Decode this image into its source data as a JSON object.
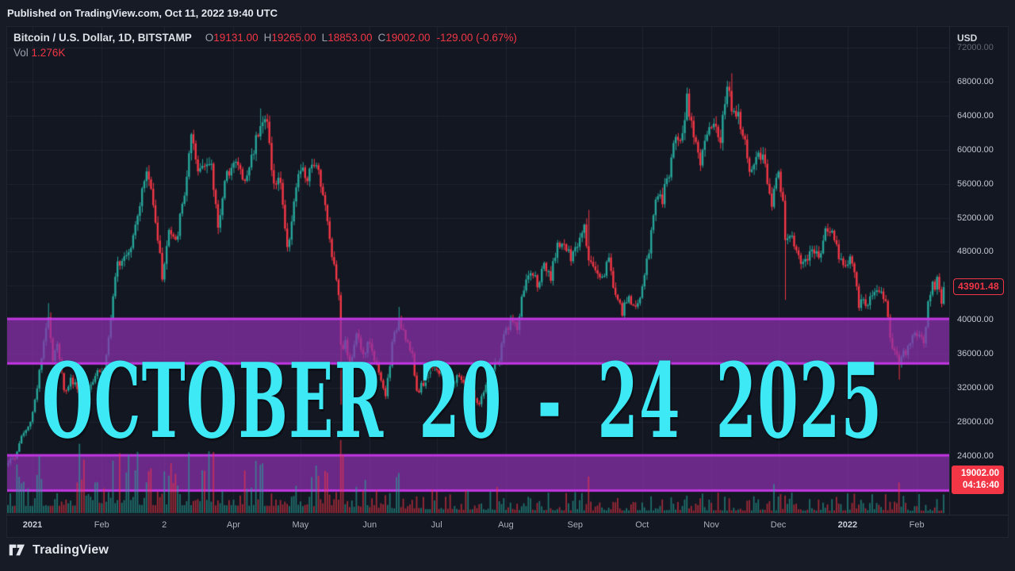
{
  "topbar": {
    "published_text": "Published on TradingView.com, Oct 11, 2022 19:40 UTC"
  },
  "legend": {
    "symbol_title": "Bitcoin / U.S. Dollar, 1D, BITSTAMP",
    "ohlc": [
      {
        "label": "O",
        "value": "19131.00"
      },
      {
        "label": "H",
        "value": "19265.00"
      },
      {
        "label": "L",
        "value": "18853.00"
      },
      {
        "label": "C",
        "value": "19002.00"
      }
    ],
    "change_text": "-129.00 (-0.67%)",
    "vol_label": "Vol",
    "vol_value": "1.276K"
  },
  "price_scale": {
    "unit": "USD",
    "ticks": [
      {
        "label": "72000.00",
        "price": 72000,
        "faded": true
      },
      {
        "label": "68000.00",
        "price": 68000
      },
      {
        "label": "64000.00",
        "price": 64000
      },
      {
        "label": "60000.00",
        "price": 60000
      },
      {
        "label": "56000.00",
        "price": 56000
      },
      {
        "label": "52000.00",
        "price": 52000
      },
      {
        "label": "48000.00",
        "price": 48000
      },
      {
        "label": "40000.00",
        "price": 40000
      },
      {
        "label": "36000.00",
        "price": 36000
      },
      {
        "label": "32000.00",
        "price": 32000
      },
      {
        "label": "28000.00",
        "price": 28000
      },
      {
        "label": "24000.00",
        "price": 24000
      }
    ],
    "last_visible_price": {
      "label": "43901.48",
      "price": 43901.48
    },
    "current_price": {
      "price_label": "19002.00",
      "countdown": "04:16:40",
      "price": 19002
    }
  },
  "time_scale": {
    "ticks": [
      {
        "label": "2021",
        "d": 12,
        "year": true
      },
      {
        "label": "Feb",
        "d": 43
      },
      {
        "label": "2",
        "d": 71
      },
      {
        "label": "Apr",
        "d": 102
      },
      {
        "label": "May",
        "d": 132
      },
      {
        "label": "Jun",
        "d": 163
      },
      {
        "label": "Jul",
        "d": 193
      },
      {
        "label": "Aug",
        "d": 224
      },
      {
        "label": "Sep",
        "d": 255
      },
      {
        "label": "Oct",
        "d": 285
      },
      {
        "label": "Nov",
        "d": 316
      },
      {
        "label": "Dec",
        "d": 346
      },
      {
        "label": "2022",
        "d": 377,
        "year": true
      },
      {
        "label": "Feb",
        "d": 408
      }
    ]
  },
  "overlay": {
    "banner_text": "OCTOBER 20 - 24 2025",
    "banner_color": "#3ce9f4"
  },
  "footer": {
    "brand": "TradingView"
  },
  "chart_data": {
    "type": "candlestick",
    "symbol": "Bitcoin / U.S. Dollar",
    "interval": "1D",
    "exchange": "BITSTAMP",
    "ylim": [
      17062,
      74437
    ],
    "grid_price_step": 4000,
    "grid_price_min": 20000,
    "grid_price_max": 72000,
    "days_total": 421,
    "zones": [
      {
        "top_price": 40100,
        "bottom_price": 34850
      },
      {
        "top_price": 24050,
        "bottom_price": 19900
      }
    ],
    "colors": {
      "up": "#26a69a",
      "down": "#f23645",
      "band_fill": "rgba(141,49,175,0.72)",
      "band_border": "#c136e0",
      "grid": "rgba(140,150,170,0.10)",
      "vol_up": "rgba(38,166,154,0.62)",
      "vol_down": "rgba(242,54,69,0.62)"
    },
    "close_anchors": [
      [
        0,
        23200
      ],
      [
        4,
        23700
      ],
      [
        7,
        26300
      ],
      [
        10,
        27300
      ],
      [
        12,
        29200
      ],
      [
        14,
        32200
      ],
      [
        17,
        37000
      ],
      [
        19,
        40800
      ],
      [
        21,
        35500
      ],
      [
        23,
        37400
      ],
      [
        26,
        31500
      ],
      [
        29,
        33000
      ],
      [
        32,
        32100
      ],
      [
        35,
        30400
      ],
      [
        38,
        32600
      ],
      [
        41,
        34300
      ],
      [
        44,
        33600
      ],
      [
        46,
        38000
      ],
      [
        50,
        46600
      ],
      [
        53,
        47800
      ],
      [
        56,
        48800
      ],
      [
        58,
        51600
      ],
      [
        63,
        57400
      ],
      [
        66,
        54200
      ],
      [
        70,
        45100
      ],
      [
        73,
        50400
      ],
      [
        76,
        48900
      ],
      [
        80,
        54900
      ],
      [
        83,
        61200
      ],
      [
        86,
        57300
      ],
      [
        89,
        58900
      ],
      [
        92,
        57650
      ],
      [
        95,
        51300
      ],
      [
        98,
        55800
      ],
      [
        101,
        58700
      ],
      [
        104,
        58100
      ],
      [
        107,
        56000
      ],
      [
        110,
        59100
      ],
      [
        114,
        63500
      ],
      [
        117,
        63100
      ],
      [
        120,
        55700
      ],
      [
        123,
        56500
      ],
      [
        126,
        48000
      ],
      [
        129,
        54000
      ],
      [
        132,
        57700
      ],
      [
        135,
        56500
      ],
      [
        139,
        58900
      ],
      [
        142,
        55000
      ],
      [
        145,
        49500
      ],
      [
        147,
        46400
      ],
      [
        149,
        43500
      ],
      [
        150,
        36700
      ],
      [
        152,
        37300
      ],
      [
        154,
        34700
      ],
      [
        157,
        38700
      ],
      [
        160,
        35600
      ],
      [
        162,
        37000
      ],
      [
        164,
        36600
      ],
      [
        167,
        33500
      ],
      [
        170,
        31000
      ],
      [
        173,
        37000
      ],
      [
        176,
        40200
      ],
      [
        179,
        38100
      ],
      [
        182,
        35500
      ],
      [
        184,
        31600
      ],
      [
        187,
        32500
      ],
      [
        190,
        34400
      ],
      [
        192,
        35000
      ],
      [
        194,
        33800
      ],
      [
        197,
        33900
      ],
      [
        200,
        32100
      ],
      [
        203,
        33600
      ],
      [
        206,
        31800
      ],
      [
        209,
        31400
      ],
      [
        212,
        29800
      ],
      [
        215,
        32100
      ],
      [
        218,
        34300
      ],
      [
        221,
        35300
      ],
      [
        223,
        38200
      ],
      [
        226,
        39900
      ],
      [
        229,
        38900
      ],
      [
        232,
        43800
      ],
      [
        235,
        45600
      ],
      [
        238,
        44400
      ],
      [
        241,
        46000
      ],
      [
        244,
        44700
      ],
      [
        247,
        49300
      ],
      [
        250,
        48800
      ],
      [
        253,
        47000
      ],
      [
        256,
        48900
      ],
      [
        259,
        51800
      ],
      [
        261,
        46900
      ],
      [
        264,
        46100
      ],
      [
        267,
        44900
      ],
      [
        270,
        47100
      ],
      [
        273,
        43000
      ],
      [
        276,
        40700
      ],
      [
        279,
        42800
      ],
      [
        282,
        41100
      ],
      [
        285,
        43800
      ],
      [
        288,
        48200
      ],
      [
        291,
        54700
      ],
      [
        294,
        54000
      ],
      [
        297,
        57400
      ],
      [
        300,
        61700
      ],
      [
        303,
        62000
      ],
      [
        305,
        66000
      ],
      [
        308,
        62300
      ],
      [
        311,
        58400
      ],
      [
        314,
        61300
      ],
      [
        317,
        63300
      ],
      [
        320,
        61400
      ],
      [
        323,
        67600
      ],
      [
        325,
        64900
      ],
      [
        328,
        64800
      ],
      [
        331,
        60300
      ],
      [
        334,
        56900
      ],
      [
        337,
        59800
      ],
      [
        340,
        58100
      ],
      [
        343,
        54000
      ],
      [
        346,
        57300
      ],
      [
        348,
        53600
      ],
      [
        349,
        49400
      ],
      [
        352,
        50100
      ],
      [
        355,
        47100
      ],
      [
        358,
        47000
      ],
      [
        361,
        48900
      ],
      [
        364,
        46700
      ],
      [
        367,
        50800
      ],
      [
        370,
        50700
      ],
      [
        373,
        47500
      ],
      [
        376,
        46200
      ],
      [
        379,
        47300
      ],
      [
        382,
        41900
      ],
      [
        385,
        41800
      ],
      [
        388,
        43100
      ],
      [
        391,
        43100
      ],
      [
        394,
        42400
      ],
      [
        397,
        36400
      ],
      [
        400,
        35100
      ],
      [
        403,
        36300
      ],
      [
        406,
        37900
      ],
      [
        409,
        38500
      ],
      [
        411,
        36900
      ],
      [
        413,
        41600
      ],
      [
        415,
        43900
      ],
      [
        417,
        44400
      ],
      [
        419,
        42500
      ],
      [
        420,
        43900
      ]
    ],
    "special_wicks": [
      {
        "d": 19,
        "high": 41950
      },
      {
        "d": 114,
        "high": 64850
      },
      {
        "d": 150,
        "low": 30000
      },
      {
        "d": 176,
        "high": 41500
      },
      {
        "d": 261,
        "high": 52920
      },
      {
        "d": 325,
        "high": 68990
      },
      {
        "d": 349,
        "low": 42333
      },
      {
        "d": 400,
        "low": 32950
      }
    ],
    "volume_envelope": [
      [
        0,
        0.8
      ],
      [
        70,
        0.92
      ],
      [
        140,
        0.78
      ],
      [
        170,
        0.55
      ],
      [
        205,
        0.38
      ],
      [
        260,
        0.3
      ],
      [
        330,
        0.3
      ],
      [
        420,
        0.26
      ]
    ],
    "volume_spikes": [
      {
        "d": 33,
        "h": 0.95
      },
      {
        "d": 150,
        "h": 1.0
      },
      {
        "d": 151,
        "h": 0.8
      },
      {
        "d": 176,
        "h": 0.55
      },
      {
        "d": 261,
        "h": 0.5
      },
      {
        "d": 344,
        "h": 0.4
      },
      {
        "d": 400,
        "h": 0.42
      }
    ]
  }
}
